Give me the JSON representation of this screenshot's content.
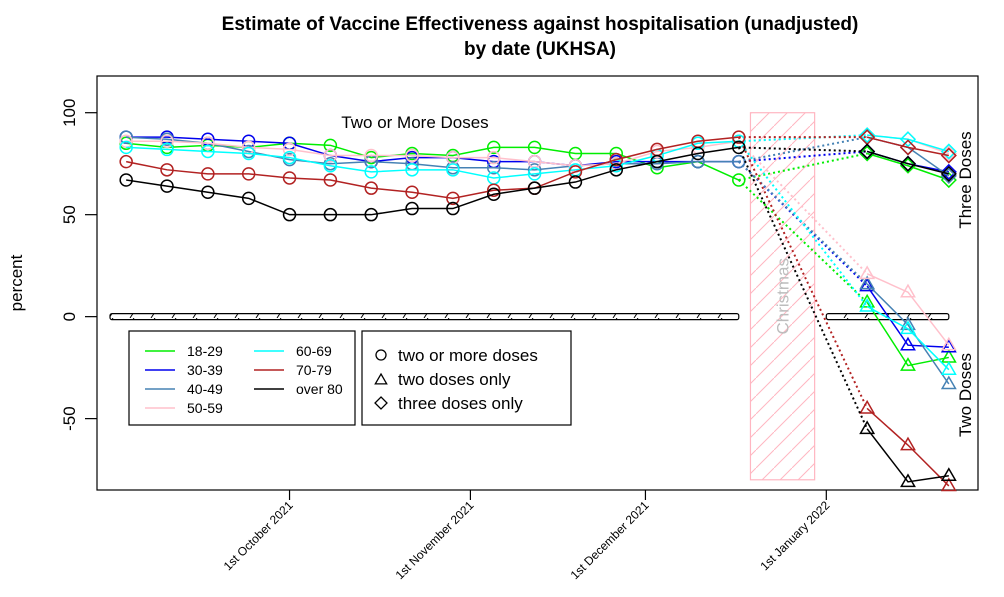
{
  "chart_data": {
    "type": "line",
    "title": "Estimate of Vaccine Effectiveness against hospitalisation (unadjusted)",
    "subtitle": "by date (UKHSA)",
    "xlabel": "",
    "ylabel": "percent",
    "ylim": [
      -85,
      118
    ],
    "yticks": [
      -50,
      0,
      50,
      100
    ],
    "xlim": [
      "2021-08-29",
      "2022-01-27"
    ],
    "xticks": [
      {
        "date": "2021-10-01",
        "label": "1st October 2021"
      },
      {
        "date": "2021-11-01",
        "label": "1st November 2021"
      },
      {
        "date": "2021-12-01",
        "label": "1st December 2021"
      },
      {
        "date": "2022-01-01",
        "label": "1st January 2022"
      }
    ],
    "grid": false,
    "annotations": {
      "two_or_more": "Two or More Doses",
      "three_doses": "Three Doses",
      "two_doses": "Two Doses",
      "christmas": "Christmas",
      "christmas_range": {
        "x": [
          "2021-12-19",
          "2021-12-30"
        ],
        "y": [
          -80,
          100
        ]
      }
    },
    "x_two_or_more": [
      "2021-09-03",
      "2021-09-10",
      "2021-09-17",
      "2021-09-24",
      "2021-10-01",
      "2021-10-08",
      "2021-10-15",
      "2021-10-22",
      "2021-10-29",
      "2021-11-05",
      "2021-11-12",
      "2021-11-19",
      "2021-11-26",
      "2021-12-03",
      "2021-12-10",
      "2021-12-17"
    ],
    "x_after": [
      "2022-01-08",
      "2022-01-15",
      "2022-01-22"
    ],
    "series": [
      {
        "name": "18-29",
        "color": "#00ee00",
        "two_or_more": [
          85,
          83,
          84,
          83,
          85,
          84,
          78,
          80,
          79,
          83,
          83,
          80,
          80,
          73,
          76,
          67
        ],
        "two_only": [
          7,
          -24,
          -20
        ],
        "three_only": [
          80,
          74,
          67
        ]
      },
      {
        "name": "30-39",
        "color": "#0000ee",
        "two_or_more": [
          88,
          88,
          87,
          86,
          85,
          79,
          76,
          78,
          78,
          76,
          76,
          74,
          76,
          76,
          76,
          76
        ],
        "two_only": [
          15,
          -14,
          -15
        ],
        "three_only": [
          81,
          75,
          71
        ]
      },
      {
        "name": "40-49",
        "color": "#4682b4",
        "two_or_more": [
          88,
          87,
          85,
          81,
          77,
          75,
          76,
          75,
          73,
          73,
          72,
          74,
          75,
          75,
          76,
          76
        ],
        "two_only": [
          16,
          -4,
          -33
        ],
        "three_only": [
          88,
          83,
          69
        ]
      },
      {
        "name": "50-59",
        "color": "#ffc0cb",
        "two_or_more": [
          86,
          86,
          85,
          83,
          82,
          79,
          79,
          79,
          78,
          78,
          76,
          74,
          75,
          81,
          83,
          86
        ],
        "two_only": [
          21,
          12,
          -14
        ],
        "three_only": [
          89,
          87,
          80
        ]
      },
      {
        "name": "60-69",
        "color": "#00ffff",
        "two_or_more": [
          83,
          82,
          81,
          80,
          78,
          74,
          71,
          72,
          72,
          68,
          70,
          72,
          74,
          79,
          85,
          86
        ],
        "two_only": [
          5,
          -6,
          -26
        ],
        "three_only": [
          89,
          87,
          81
        ]
      },
      {
        "name": "70-79",
        "color": "#b22222",
        "two_or_more": [
          76,
          72,
          70,
          70,
          68,
          67,
          63,
          61,
          58,
          62,
          63,
          71,
          77,
          82,
          86,
          88
        ],
        "two_only": [
          -45,
          -63,
          -83
        ],
        "three_only": [
          88,
          83,
          79
        ]
      },
      {
        "name": "over 80",
        "color": "#000000",
        "two_or_more": [
          67,
          64,
          61,
          58,
          50,
          50,
          50,
          53,
          53,
          60,
          63,
          66,
          72,
          76,
          80,
          83
        ],
        "two_only": [
          -55,
          -81,
          -78
        ],
        "three_only": [
          81,
          75,
          70
        ]
      }
    ],
    "legend_age": {
      "position": "bottom-left",
      "entries": [
        "18-29",
        "30-39",
        "40-49",
        "50-59",
        "60-69",
        "70-79",
        "over 80"
      ]
    },
    "legend_dose": {
      "position": "bottom-center",
      "entries": [
        {
          "symbol": "circle",
          "label": "two or more doses"
        },
        {
          "symbol": "triangle",
          "label": "two doses only"
        },
        {
          "symbol": "diamond",
          "label": "three doses only"
        }
      ]
    }
  }
}
